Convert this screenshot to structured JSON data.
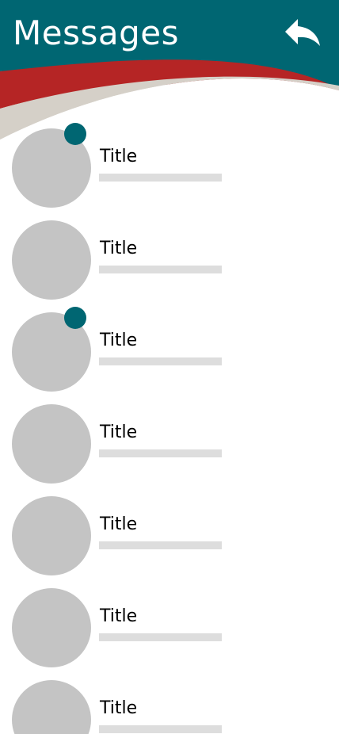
{
  "header": {
    "title": "Messages",
    "back_icon": "reply-arrow-icon"
  },
  "colors": {
    "primary": "#006672",
    "accent_red": "#b52525",
    "accent_beige": "#d5d0c8",
    "avatar": "#c4c4c4",
    "preview": "#dddddd",
    "background": "#ffffff"
  },
  "messages": [
    {
      "title": "Title",
      "unread": true
    },
    {
      "title": "Title",
      "unread": false
    },
    {
      "title": "Title",
      "unread": true
    },
    {
      "title": "Title",
      "unread": false
    },
    {
      "title": "Title",
      "unread": false
    },
    {
      "title": "Title",
      "unread": false
    },
    {
      "title": "Title",
      "unread": false
    }
  ]
}
